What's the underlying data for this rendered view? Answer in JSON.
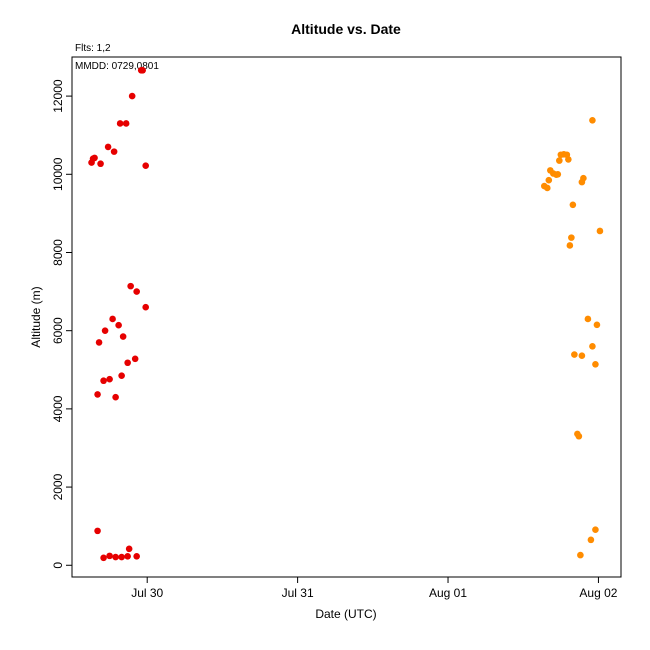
{
  "chart_data": {
    "type": "scatter",
    "title": "Altitude  vs. Date",
    "subtitle": "Flts: 1,2",
    "annotation": "MMDD: 0729,0801",
    "xlabel": "Date (UTC)",
    "ylabel": "Altitude (m)",
    "x_unit": "days",
    "x_ticks": [
      {
        "value": 0,
        "label": "Jul 30"
      },
      {
        "value": 1,
        "label": "Jul 31"
      },
      {
        "value": 2,
        "label": "Aug 01"
      },
      {
        "value": 3,
        "label": "Aug 02"
      }
    ],
    "xlim": [
      -0.5,
      3.15
    ],
    "y_ticks": [
      0,
      2000,
      4000,
      6000,
      8000,
      10000,
      12000
    ],
    "ylim": [
      -300,
      13000
    ],
    "grid": false,
    "legend": "none",
    "series": [
      {
        "color": "#e60000",
        "points": [
          [
            -0.37,
            10300
          ],
          [
            -0.35,
            10420
          ],
          [
            -0.36,
            10400
          ],
          [
            -0.31,
            10270
          ],
          [
            -0.26,
            10700
          ],
          [
            -0.22,
            10580
          ],
          [
            -0.18,
            11300
          ],
          [
            -0.14,
            11300
          ],
          [
            -0.1,
            12000
          ],
          [
            -0.04,
            12660
          ],
          [
            -0.03,
            12660
          ],
          [
            -0.01,
            10220
          ],
          [
            -0.33,
            4370
          ],
          [
            -0.32,
            5700
          ],
          [
            -0.29,
            4720
          ],
          [
            -0.28,
            6000
          ],
          [
            -0.25,
            4760
          ],
          [
            -0.23,
            6300
          ],
          [
            -0.21,
            4300
          ],
          [
            -0.19,
            6140
          ],
          [
            -0.17,
            4850
          ],
          [
            -0.16,
            5850
          ],
          [
            -0.13,
            5180
          ],
          [
            -0.11,
            7140
          ],
          [
            -0.08,
            5280
          ],
          [
            -0.07,
            7000
          ],
          [
            -0.01,
            6600
          ],
          [
            -0.33,
            880
          ],
          [
            -0.29,
            190
          ],
          [
            -0.25,
            240
          ],
          [
            -0.21,
            210
          ],
          [
            -0.17,
            210
          ],
          [
            -0.13,
            230
          ],
          [
            -0.12,
            420
          ],
          [
            -0.07,
            230
          ]
        ]
      },
      {
        "color": "#ff8c00",
        "points": [
          [
            2.64,
            9700
          ],
          [
            2.66,
            9650
          ],
          [
            2.67,
            9850
          ],
          [
            2.68,
            10100
          ],
          [
            2.7,
            10020
          ],
          [
            2.72,
            9990
          ],
          [
            2.73,
            10000
          ],
          [
            2.74,
            10350
          ],
          [
            2.75,
            10500
          ],
          [
            2.77,
            10510
          ],
          [
            2.79,
            10500
          ],
          [
            2.8,
            10380
          ],
          [
            2.81,
            8180
          ],
          [
            2.82,
            8380
          ],
          [
            2.83,
            9220
          ],
          [
            2.89,
            9800
          ],
          [
            2.9,
            9900
          ],
          [
            2.96,
            11380
          ],
          [
            3.01,
            8550
          ],
          [
            2.84,
            5390
          ],
          [
            2.86,
            3360
          ],
          [
            2.87,
            3300
          ],
          [
            2.89,
            5360
          ],
          [
            2.93,
            6300
          ],
          [
            2.96,
            5600
          ],
          [
            2.98,
            5140
          ],
          [
            2.99,
            6150
          ],
          [
            2.88,
            260
          ],
          [
            2.95,
            650
          ],
          [
            2.98,
            910
          ]
        ]
      }
    ]
  }
}
